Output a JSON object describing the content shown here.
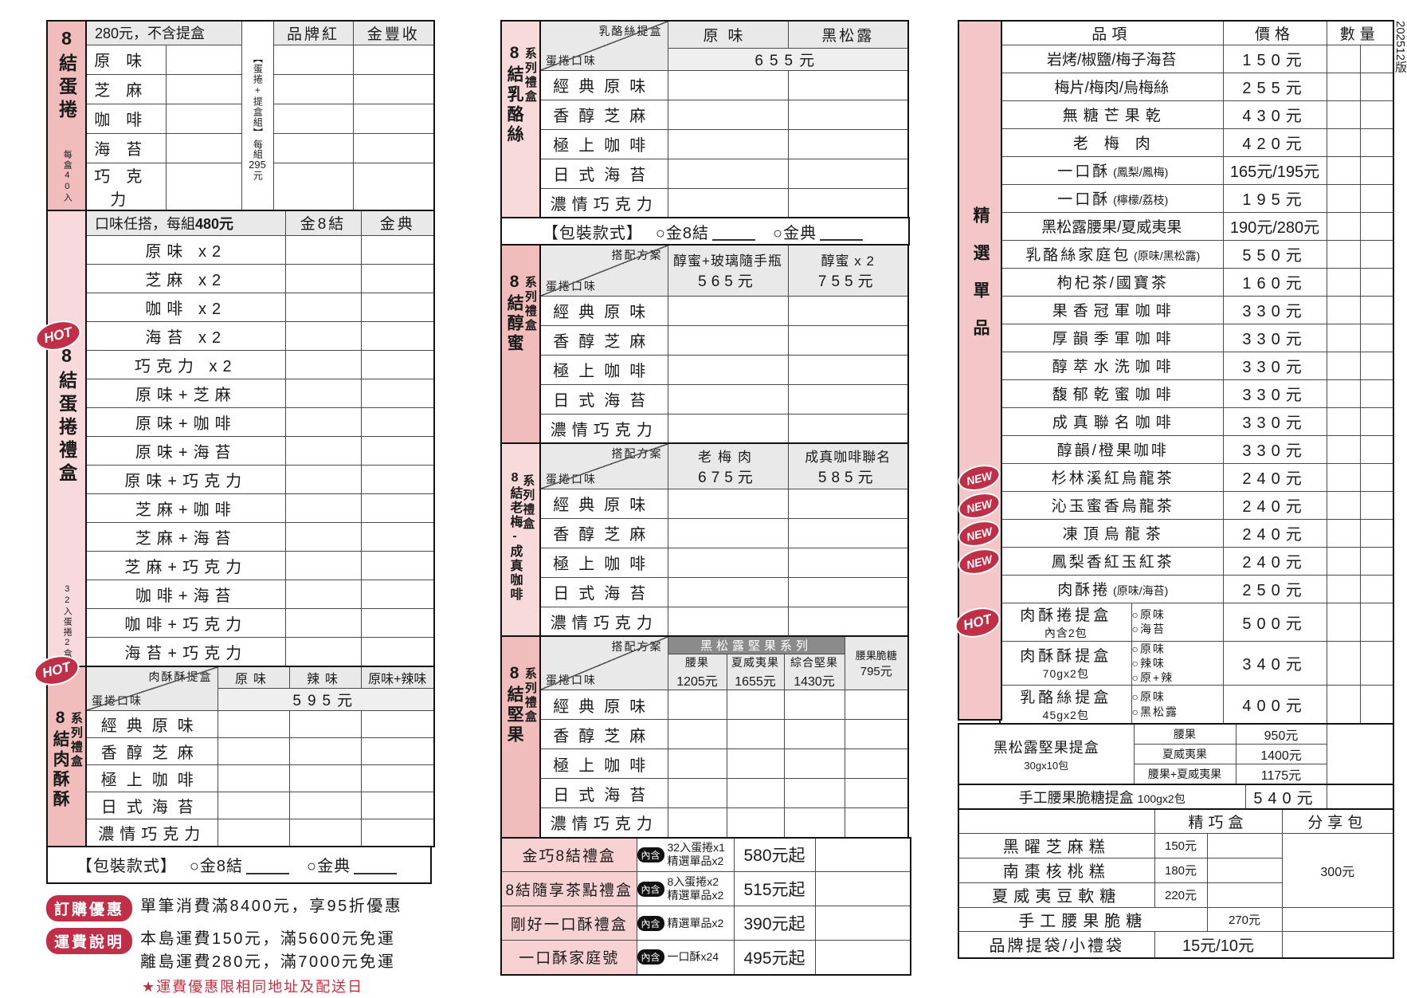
{
  "version": "202512版",
  "badges": {
    "hot": "HOT",
    "new": "NEW",
    "contains": "內含"
  },
  "packaging": {
    "label": "【包裝款式】",
    "optionA": "○金8結",
    "optionB": "○金典"
  },
  "common_flavors": [
    "經典原味",
    "香醇芝麻",
    "極上咖啡",
    "日式海苔",
    "濃情巧克力"
  ],
  "colors": {
    "pink_dark": "#f1bcbc",
    "pink_light": "#f9dada",
    "header_gray": "#e9e9e9",
    "band_gray": "#8b8b8b",
    "badge_red": "#bf3048"
  },
  "left": {
    "eggroll": {
      "sidebar_title": "8結蛋捲",
      "sidebar_note": "每盒40入",
      "price_note": "280元，不含提盒",
      "combo_label": "【蛋捲+提盒組】",
      "combo_price_prefix": "每組",
      "combo_price_num": "295",
      "combo_price_suffix": "元",
      "columns": [
        "品牌紅",
        "金豐收"
      ],
      "flavors": [
        "原味",
        "芝麻",
        "咖啡",
        "海苔",
        "巧克力"
      ]
    },
    "giftbox": {
      "sidebar_title": "8結蛋捲禮盒",
      "sidebar_note": "32入蛋捲2盒",
      "price_note_a": "口味任搭，每組",
      "price_note_b": "480元",
      "columns": [
        "金8結",
        "金典"
      ],
      "rows": [
        "原味 x2",
        "芝麻 x2",
        "咖啡 x2",
        "海苔 x2",
        "巧克力 x2",
        "原味+芝麻",
        "原味+咖啡",
        "原味+海苔",
        "原味+巧克力",
        "芝麻+咖啡",
        "芝麻+海苔",
        "芝麻+巧克力",
        "咖啡+海苔",
        "咖啡+巧克力",
        "海苔+巧克力"
      ]
    },
    "porkfloss": {
      "sidebar_title": "8結肉酥酥",
      "sidebar_note": "系列禮盒",
      "diag_top": "肉酥酥提盒",
      "diag_bottom": "蛋捲口味",
      "columns": [
        "原味",
        "辣味",
        "原味+辣味"
      ],
      "price": "595元"
    },
    "notes": {
      "badge1": "訂購優惠",
      "text1": "單筆消費滿8400元，享95折優惠",
      "badge2": "運費說明",
      "text2a": "本島運費150元，滿5600元免運",
      "text2b": "離島運費280元，滿7000元免運",
      "star": "★運費優惠限相同地址及配送日"
    }
  },
  "middle": {
    "sections": [
      {
        "id": "cheese",
        "sidebar_title": "8結乳酪絲",
        "sidebar_note": "系列禮盒",
        "diag_top": "乳酪絲提盒",
        "diag_bottom": "蛋捲口味",
        "mode": "span_price",
        "columns": [
          "原味",
          "黑松露"
        ],
        "price": "655元",
        "packaging_after": true
      },
      {
        "id": "honey",
        "sidebar_title": "8結醇蜜",
        "sidebar_note": "系列禮盒",
        "diag_top": "搭配方案",
        "diag_bottom": "蛋捲口味",
        "mode": "col_price",
        "columns": [
          {
            "label": "醇蜜+玻璃隨手瓶",
            "price": "565元"
          },
          {
            "label": "醇蜜 x 2",
            "price": "755元"
          }
        ]
      },
      {
        "id": "plum-coffee",
        "sidebar_title": "8結老梅-成真咖啡",
        "sidebar_note": "系列禮盒",
        "diag_top": "搭配方案",
        "diag_bottom": "蛋捲口味",
        "mode": "col_price",
        "columns": [
          {
            "label": "老梅肉",
            "price": "675元"
          },
          {
            "label": "成真咖啡聯名",
            "price": "585元"
          }
        ]
      },
      {
        "id": "nuts",
        "sidebar_title": "8結堅果",
        "sidebar_note": "系列禮盒",
        "diag_top": "搭配方案",
        "diag_bottom": "蛋捲口味",
        "mode": "nut",
        "band": "黑松露堅果系列",
        "columns": [
          {
            "label": "腰果",
            "price": "1205元"
          },
          {
            "label": "夏威夷果",
            "price": "1655元"
          },
          {
            "label": "綜合堅果",
            "price": "1430元"
          }
        ],
        "side_column": {
          "label": "腰果脆糖",
          "price": "795元"
        }
      }
    ],
    "gift_rows": [
      {
        "name": "金巧8結禮盒",
        "contains": [
          "32入蛋捲x1",
          "精選單品x2"
        ],
        "price": "580元起"
      },
      {
        "name": "8結隨享茶點禮盒",
        "contains": [
          "8入蛋捲x2",
          "精選單品x2"
        ],
        "price": "515元起"
      },
      {
        "name": "剛好一口酥禮盒",
        "contains": [
          "精選單品x2"
        ],
        "price": "390元起"
      },
      {
        "name": "一口酥家庭號",
        "contains": [
          "一口酥x24"
        ],
        "price": "495元起"
      }
    ]
  },
  "right": {
    "sidebar_title": "精選單品",
    "headers": {
      "item": "品項",
      "price": "價格",
      "qty": "數量"
    },
    "rows": [
      {
        "name": "岩烤/椒鹽/梅子海苔",
        "price": "150元"
      },
      {
        "name": "梅片/梅肉/烏梅絲",
        "price": "255元"
      },
      {
        "name": "無糖芒果乾",
        "price": "430元"
      },
      {
        "name": "老梅肉",
        "price": "420元"
      },
      {
        "name": "一口酥",
        "paren": "(鳳梨/鳳梅)",
        "price": "165元/195元"
      },
      {
        "name": "一口酥",
        "paren": "(檸檬/荔枝)",
        "price": "195元"
      },
      {
        "name": "黑松露腰果/夏威夷果",
        "price": "190元/280元"
      },
      {
        "name": "乳酪絲家庭包",
        "paren": "(原味/黑松露)",
        "price": "550元"
      },
      {
        "name": "枸杞茶/國寶茶",
        "price": "160元"
      },
      {
        "name": "果香冠軍咖啡",
        "price": "330元"
      },
      {
        "name": "厚韻季軍咖啡",
        "price": "330元"
      },
      {
        "name": "醇萃水洗咖啡",
        "price": "330元"
      },
      {
        "name": "馥郁乾蜜咖啡",
        "price": "330元"
      },
      {
        "name": "成真聯名咖啡",
        "price": "330元"
      },
      {
        "name": "醇韻/橙果咖啡",
        "price": "330元"
      },
      {
        "name": "杉林溪紅烏龍茶",
        "price": "240元",
        "badge": "NEW"
      },
      {
        "name": "沁玉蜜香烏龍茶",
        "price": "240元",
        "badge": "NEW"
      },
      {
        "name": "凍頂烏龍茶",
        "price": "240元",
        "badge": "NEW"
      },
      {
        "name": "鳳梨香紅玉紅茶",
        "price": "240元",
        "badge": "NEW"
      },
      {
        "name": "肉酥捲",
        "paren": "(原味/海苔)",
        "price": "250元"
      }
    ],
    "option_rows": [
      {
        "name": "肉酥捲提盒",
        "sub": "內含2包",
        "options": [
          "○原味",
          "○海苔"
        ],
        "price": "500元",
        "badge": "HOT"
      },
      {
        "name": "肉酥酥提盒",
        "sub": "70gx2包",
        "options": [
          "○原味",
          "○辣味",
          "○原+辣"
        ],
        "price": "340元"
      },
      {
        "name": "乳酪絲提盒",
        "sub": "45gx2包",
        "options": [
          "○原味",
          "○黑松露"
        ],
        "price": "400元"
      }
    ],
    "nut_box": {
      "name": "黑松露堅果提盒",
      "sub": "30gx10包",
      "variants": [
        {
          "label": "腰果",
          "price": "950元"
        },
        {
          "label": "夏威夷果",
          "price": "1400元"
        },
        {
          "label": "腰果+夏威夷果",
          "price": "1175元"
        }
      ]
    },
    "cashew_box": {
      "name": "手工腰果脆糖提盒",
      "size": "100gx2包",
      "price": "540元"
    },
    "sweets": {
      "header_box": "精巧盒",
      "header_share": "分享包",
      "rows": [
        {
          "name": "黑曜芝麻糕",
          "price": "150元"
        },
        {
          "name": "南棗核桃糕",
          "price": "180元"
        },
        {
          "name": "夏威夷豆軟糖",
          "price": "220元"
        }
      ],
      "share_price": "300元",
      "candy_row": {
        "name": "手工腰果脆糖",
        "price": "270元"
      },
      "bag_row": {
        "name": "品牌提袋/小禮袋",
        "price": "15元/10元"
      }
    }
  }
}
